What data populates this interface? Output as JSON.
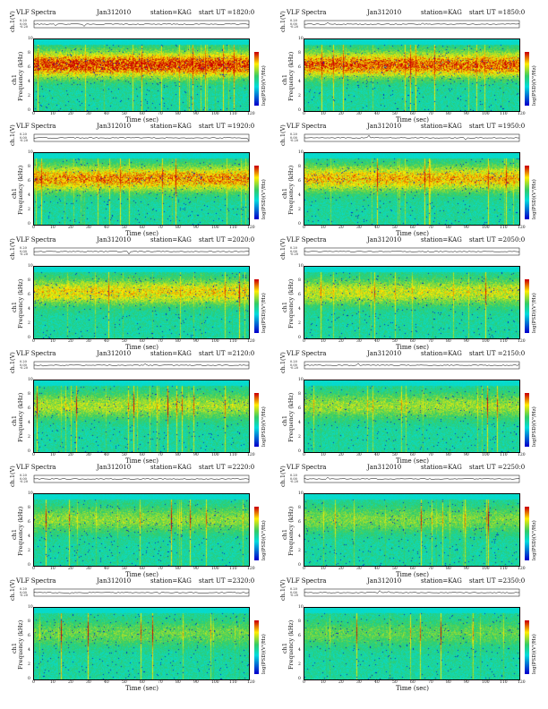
{
  "header_labels": {
    "title": "VLF Spectra",
    "station": "station=KAG",
    "start": "start UT =",
    "channel_axis": "ch.1(V)",
    "freq_axis_top": "ch1",
    "freq_axis": "Frequency (kHz)",
    "colorbar_axis": "log(PSD)(V²/Hz)",
    "time_axis": "Time (sec)"
  },
  "colors": {
    "low": "#0000cc",
    "background": "#00dddd",
    "mid": "#33cc66",
    "high_yellow": "#ffee00",
    "high_red": "#cc0000"
  },
  "chart_data": [
    {
      "type": "heatmap",
      "date": "Jan312010",
      "ut": "1820:0",
      "xlim": [
        0,
        120
      ],
      "ylim": [
        0,
        10
      ],
      "channel_ylim": [
        -0.2,
        0.2
      ]
    },
    {
      "type": "heatmap",
      "date": "Jan312010",
      "ut": "1850:0",
      "xlim": [
        0,
        120
      ],
      "ylim": [
        0,
        10
      ],
      "channel_ylim": [
        -0.2,
        0.2
      ]
    },
    {
      "type": "heatmap",
      "date": "Jan312010",
      "ut": "1920:0",
      "xlim": [
        0,
        120
      ],
      "ylim": [
        0,
        10
      ],
      "channel_ylim": [
        -0.2,
        0.2
      ]
    },
    {
      "type": "heatmap",
      "date": "Jan312010",
      "ut": "1950:0",
      "xlim": [
        0,
        120
      ],
      "ylim": [
        0,
        10
      ],
      "channel_ylim": [
        -0.2,
        0.2
      ]
    },
    {
      "type": "heatmap",
      "date": "Jan312010",
      "ut": "2020:0",
      "xlim": [
        0,
        120
      ],
      "ylim": [
        0,
        10
      ],
      "channel_ylim": [
        -0.2,
        0.2
      ]
    },
    {
      "type": "heatmap",
      "date": "Jan312010",
      "ut": "2050:0",
      "xlim": [
        0,
        120
      ],
      "ylim": [
        0,
        10
      ],
      "channel_ylim": [
        -0.2,
        0.2
      ]
    },
    {
      "type": "heatmap",
      "date": "Jan312010",
      "ut": "2120:0",
      "xlim": [
        0,
        120
      ],
      "ylim": [
        0,
        10
      ],
      "channel_ylim": [
        -0.2,
        0.2
      ]
    },
    {
      "type": "heatmap",
      "date": "Jan312010",
      "ut": "2150:0",
      "xlim": [
        0,
        120
      ],
      "ylim": [
        0,
        10
      ],
      "channel_ylim": [
        -0.2,
        0.2
      ]
    },
    {
      "type": "heatmap",
      "date": "Jan312010",
      "ut": "2220:0",
      "xlim": [
        0,
        120
      ],
      "ylim": [
        0,
        10
      ],
      "channel_ylim": [
        -0.2,
        0.2
      ]
    },
    {
      "type": "heatmap",
      "date": "Jan312010",
      "ut": "2250:0",
      "xlim": [
        0,
        120
      ],
      "ylim": [
        0,
        10
      ],
      "channel_ylim": [
        -0.2,
        0.2
      ]
    },
    {
      "type": "heatmap",
      "date": "Jan312010",
      "ut": "2320:0",
      "xlim": [
        0,
        120
      ],
      "ylim": [
        0,
        10
      ],
      "channel_ylim": [
        -0.2,
        0.2
      ]
    },
    {
      "type": "heatmap",
      "date": "Jan312010",
      "ut": "2350:0",
      "xlim": [
        0,
        120
      ],
      "ylim": [
        0,
        10
      ],
      "channel_ylim": [
        -0.2,
        0.2
      ]
    }
  ],
  "ticks": {
    "time": [
      "0",
      "10",
      "20",
      "30",
      "40",
      "50",
      "60",
      "70",
      "80",
      "90",
      "100",
      "110",
      "120"
    ],
    "freq": [
      "0",
      "2",
      "4",
      "6",
      "8",
      "10"
    ],
    "channel": [
      "0.20",
      "0.00",
      "-0.20"
    ]
  }
}
